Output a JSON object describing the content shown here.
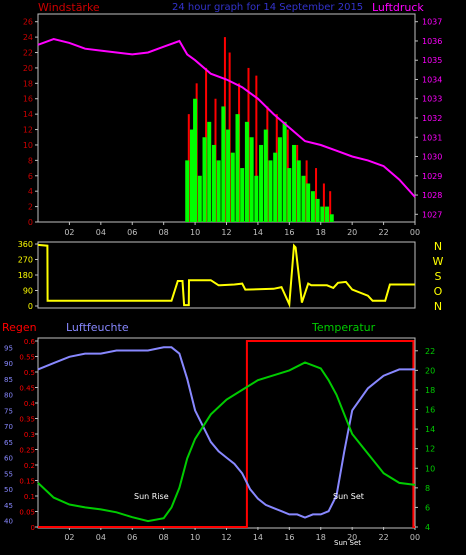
{
  "colors": {
    "windspeed_label": "#cc0000",
    "pressure_label": "#ff00ff",
    "title": "#3333cc",
    "axis": "#c0c0c0",
    "pressure_line": "#ff00ff",
    "wind_gust_bars": "#ff0000",
    "wind_avg_bars": "#00ff00",
    "direction_line": "#ffff00",
    "direction_axis_text": "#ffff00",
    "rain": "#ff0000",
    "humidity": "#8888ff",
    "temperature": "#00cc00",
    "ticks_bottom": "#c0c0c0",
    "annotation": "#ffffff"
  },
  "chart_data": [
    {
      "type": "bar+line",
      "title": "24 hour graph for   14 September 2015",
      "left_label": "Windstärke",
      "right_label": "Luftdruck",
      "x_ticks": [
        "02",
        "04",
        "06",
        "08",
        "10",
        "12",
        "14",
        "16",
        "18",
        "20",
        "22",
        "00"
      ],
      "wind_yticks": [
        0,
        2,
        4,
        6,
        8,
        10,
        12,
        14,
        16,
        18,
        20,
        22,
        24,
        26
      ],
      "wind_ylim": [
        0,
        27
      ],
      "pressure_yticks": [
        1027,
        1028,
        1029,
        1030,
        1031,
        1032,
        1033,
        1034,
        1035,
        1036,
        1037
      ],
      "pressure_ylim": [
        1026.6,
        1037.4
      ],
      "pressure": {
        "x_hours": [
          0,
          1,
          2,
          3,
          4,
          5,
          6,
          7,
          8,
          9,
          9.5,
          10,
          11,
          12,
          13,
          14,
          15,
          16,
          17,
          18,
          19,
          20,
          21,
          22,
          23,
          24
        ],
        "values": [
          1035.8,
          1036.1,
          1035.9,
          1035.6,
          1035.5,
          1035.4,
          1035.3,
          1035.4,
          1035.7,
          1036.0,
          1035.3,
          1035.0,
          1034.3,
          1034.0,
          1033.6,
          1033.0,
          1032.2,
          1031.5,
          1030.8,
          1030.6,
          1030.3,
          1030.0,
          1029.8,
          1029.5,
          1028.8,
          1027.9
        ]
      },
      "wind_avg": {
        "x_hours": [
          9.5,
          9.8,
          10.0,
          10.3,
          10.6,
          10.9,
          11.2,
          11.5,
          11.8,
          12.1,
          12.4,
          12.7,
          13.0,
          13.3,
          13.6,
          13.9,
          14.2,
          14.5,
          14.8,
          15.1,
          15.4,
          15.7,
          16.0,
          16.3,
          16.6,
          16.9,
          17.2,
          17.5,
          17.8,
          18.1,
          18.4,
          18.7
        ],
        "values": [
          8,
          12,
          16,
          6,
          11,
          13,
          10,
          8,
          15,
          12,
          9,
          14,
          7,
          13,
          11,
          6,
          10,
          12,
          8,
          9,
          11,
          13,
          7,
          10,
          8,
          6,
          5,
          4,
          3,
          2,
          2,
          1
        ]
      },
      "wind_gust": {
        "x_hours": [
          9.6,
          10.1,
          10.7,
          11.3,
          11.9,
          12.2,
          12.8,
          13.4,
          13.9,
          14.6,
          15.2,
          15.9,
          16.5,
          17.1,
          17.7,
          18.2,
          18.6
        ],
        "values": [
          14,
          18,
          20,
          16,
          24,
          22,
          18,
          20,
          19,
          15,
          14,
          12,
          10,
          8,
          7,
          5,
          4
        ]
      }
    },
    {
      "type": "line",
      "right_label_letters": [
        "N",
        "W",
        "S",
        "O",
        "N"
      ],
      "direction_yticks": [
        0,
        90,
        180,
        270,
        360
      ],
      "direction_ylim": [
        0,
        360
      ],
      "direction": {
        "x_hours": [
          0,
          0.6,
          0.61,
          8.5,
          8.9,
          9.2,
          9.3,
          9.6,
          9.61,
          11,
          11.5,
          11.6,
          12.5,
          13.0,
          13.2,
          15.0,
          15.5,
          16.0,
          16.3,
          16.4,
          16.8,
          17.2,
          17.4,
          18.4,
          18.8,
          19.1,
          19.6,
          20.0,
          21.0,
          21.3,
          22.1,
          22.4,
          24
        ],
        "values": [
          355,
          350,
          30,
          30,
          145,
          145,
          5,
          5,
          150,
          150,
          120,
          120,
          125,
          130,
          95,
          100,
          110,
          10,
          350,
          340,
          20,
          130,
          120,
          120,
          105,
          135,
          140,
          95,
          60,
          30,
          30,
          125,
          125
        ]
      }
    },
    {
      "type": "line",
      "left_label": "Regen",
      "humidity_label": "Luftfeuchte",
      "temperature_label": "Temperatur",
      "rain_yticks": [
        "0",
        "0.05",
        "0.1",
        "0.15",
        "0.2",
        "0.25",
        "0.3",
        "0.35",
        "0.4",
        "0.45",
        "0.5",
        "0.55",
        "0.6"
      ],
      "rain_ylim": [
        0,
        0.6
      ],
      "humidity_yticks": [
        40,
        45,
        50,
        55,
        60,
        65,
        70,
        75,
        80,
        85,
        90,
        95
      ],
      "humidity_ylim": [
        38,
        97
      ],
      "temperature_yticks": [
        4,
        6,
        8,
        10,
        12,
        14,
        16,
        18,
        20,
        22
      ],
      "temperature_ylim": [
        4,
        23
      ],
      "annotations": [
        "Sun Rise",
        "Sun Set",
        "Sun Set"
      ],
      "rain": {
        "x_hours": [
          0,
          13.3,
          13.3,
          23.9,
          23.9,
          24
        ],
        "values": [
          0,
          0,
          0.6,
          0.6,
          0,
          0
        ]
      },
      "humidity": {
        "x_hours": [
          0,
          1,
          2,
          3,
          4,
          5,
          6,
          7,
          8,
          8.5,
          9,
          9.5,
          10,
          10.5,
          11,
          11.5,
          12,
          12.5,
          13,
          13.5,
          14,
          14.5,
          15,
          15.5,
          16,
          16.5,
          17,
          17.5,
          18,
          18.5,
          19,
          19.5,
          20,
          21,
          22,
          23,
          24
        ],
        "values": [
          88,
          90,
          92,
          93,
          93,
          94,
          94,
          94,
          95,
          95,
          93,
          85,
          75,
          70,
          65,
          62,
          60,
          58,
          55,
          50,
          47,
          45,
          44,
          43,
          42,
          42,
          41,
          42,
          42,
          43,
          48,
          62,
          75,
          82,
          86,
          88,
          88
        ]
      },
      "temperature": {
        "x_hours": [
          0,
          1,
          2,
          3,
          4,
          5,
          6,
          7,
          8,
          8.5,
          9,
          9.5,
          10,
          11,
          12,
          13,
          14,
          15,
          16,
          17,
          18,
          18.5,
          19,
          19.5,
          20,
          21,
          22,
          23,
          24
        ],
        "values": [
          8.5,
          7.0,
          6.3,
          6.0,
          5.8,
          5.5,
          5.0,
          4.6,
          4.9,
          6.0,
          8.0,
          11.0,
          13.0,
          15.5,
          17.0,
          18.0,
          19.0,
          19.5,
          20.0,
          20.8,
          20.2,
          19.0,
          17.5,
          15.5,
          13.5,
          11.5,
          9.5,
          8.5,
          8.3
        ]
      }
    }
  ]
}
